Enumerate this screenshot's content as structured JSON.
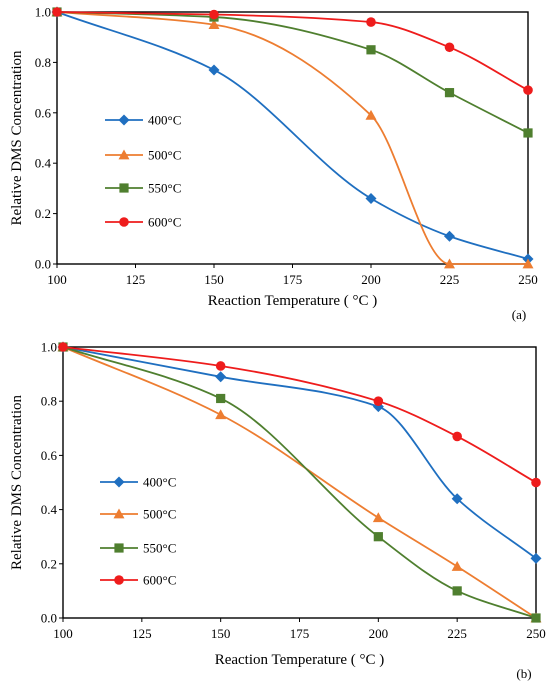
{
  "chart_data": [
    {
      "type": "line",
      "panel_label": "(a)",
      "xlabel": "Reaction Temperature ( °C )",
      "ylabel": "Relative DMS Concentration",
      "x": [
        100,
        150,
        200,
        225,
        250
      ],
      "xticks": [
        "100",
        "125",
        "150",
        "175",
        "200",
        "225",
        "250"
      ],
      "yticks": [
        "0.0",
        "0.2",
        "0.4",
        "0.6",
        "0.8",
        "1.0"
      ],
      "xlim": [
        100,
        250
      ],
      "ylim": [
        0,
        1
      ],
      "grid": false,
      "legend_position": "left",
      "series": [
        {
          "name": "400°C",
          "color": "#1f6fc0",
          "marker": "diamond",
          "values": [
            1.0,
            0.77,
            0.26,
            0.11,
            0.02
          ]
        },
        {
          "name": "500°C",
          "color": "#ed7d31",
          "marker": "triangle",
          "values": [
            1.0,
            0.95,
            0.59,
            0.0,
            0.0
          ]
        },
        {
          "name": "550°C",
          "color": "#4f7f2f",
          "marker": "square",
          "values": [
            1.0,
            0.98,
            0.85,
            0.68,
            0.52
          ]
        },
        {
          "name": "600°C",
          "color": "#ee1c1c",
          "marker": "circle",
          "values": [
            1.0,
            0.99,
            0.96,
            0.86,
            0.69
          ]
        }
      ]
    },
    {
      "type": "line",
      "panel_label": "(b)",
      "xlabel": "Reaction Temperature ( °C )",
      "ylabel": "Relative DMS Concentration",
      "x": [
        100,
        150,
        200,
        225,
        250
      ],
      "xticks": [
        "100",
        "125",
        "150",
        "175",
        "200",
        "225",
        "250"
      ],
      "yticks": [
        "0.0",
        "0.2",
        "0.4",
        "0.6",
        "0.8",
        "1.0"
      ],
      "xlim": [
        100,
        250
      ],
      "ylim": [
        0,
        1
      ],
      "grid": false,
      "legend_position": "left",
      "series": [
        {
          "name": "400°C",
          "color": "#1f6fc0",
          "marker": "diamond",
          "values": [
            1.0,
            0.89,
            0.78,
            0.44,
            0.22
          ]
        },
        {
          "name": "500°C",
          "color": "#ed7d31",
          "marker": "triangle",
          "values": [
            1.0,
            0.75,
            0.37,
            0.19,
            0.0
          ]
        },
        {
          "name": "550°C",
          "color": "#4f7f2f",
          "marker": "square",
          "values": [
            1.0,
            0.81,
            0.3,
            0.1,
            0.0
          ]
        },
        {
          "name": "600°C",
          "color": "#ee1c1c",
          "marker": "circle",
          "values": [
            1.0,
            0.93,
            0.8,
            0.67,
            0.5
          ]
        }
      ]
    }
  ]
}
